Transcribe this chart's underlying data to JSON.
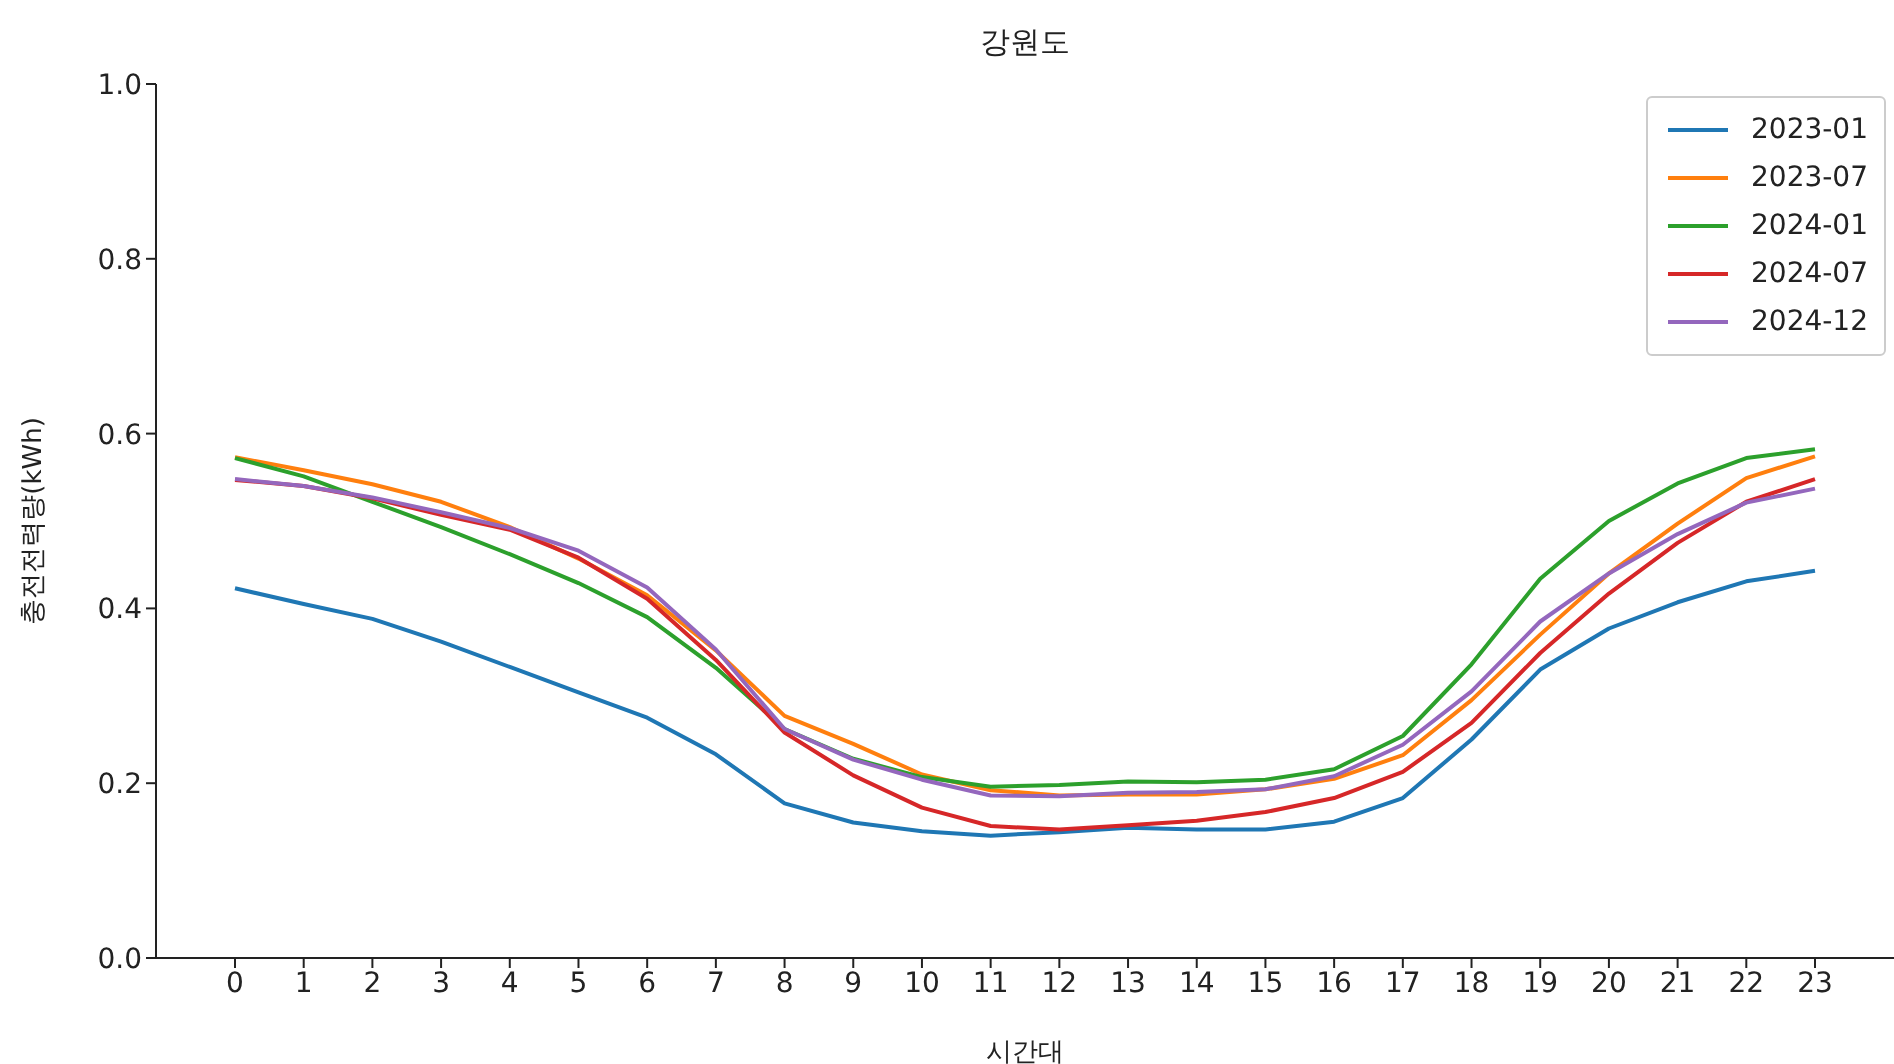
{
  "chart_data": {
    "type": "line",
    "title": "강원도",
    "xlabel": "시간대",
    "ylabel": "충전전력량(kWh)",
    "x": [
      0,
      1,
      2,
      3,
      4,
      5,
      6,
      7,
      8,
      9,
      10,
      11,
      12,
      13,
      14,
      15,
      16,
      17,
      18,
      19,
      20,
      21,
      22,
      23
    ],
    "xlim": [
      -1.15,
      24.15
    ],
    "xticks": [
      0,
      1,
      2,
      3,
      4,
      5,
      6,
      7,
      8,
      9,
      10,
      11,
      12,
      13,
      14,
      15,
      16,
      17,
      18,
      19,
      20,
      21,
      22,
      23
    ],
    "ylim": [
      0,
      1
    ],
    "yticks": [
      {
        "value": 0,
        "label": "0.0"
      },
      {
        "value": 0.2,
        "label": "0.2"
      },
      {
        "value": 0.4,
        "label": "0.4"
      },
      {
        "value": 0.6,
        "label": "0.6"
      },
      {
        "value": 0.8,
        "label": "0.8"
      },
      {
        "value": 1,
        "label": "1.0"
      }
    ],
    "grid": false,
    "legend": "top right",
    "marker": "none",
    "line_style": "solid",
    "series": [
      {
        "name": "2023-01",
        "color": "#1f77b4",
        "values": [
          0.423,
          0.405,
          0.388,
          0.362,
          0.333,
          0.304,
          0.275,
          0.233,
          0.177,
          0.155,
          0.145,
          0.14,
          0.144,
          0.149,
          0.147,
          0.147,
          0.156,
          0.183,
          0.25,
          0.33,
          0.377,
          0.407,
          0.431,
          0.443
        ]
      },
      {
        "name": "2023-07",
        "color": "#ff7f0e",
        "values": [
          0.573,
          0.558,
          0.542,
          0.522,
          0.493,
          0.457,
          0.415,
          0.352,
          0.277,
          0.245,
          0.21,
          0.192,
          0.186,
          0.187,
          0.187,
          0.193,
          0.205,
          0.232,
          0.295,
          0.37,
          0.44,
          0.497,
          0.549,
          0.574
        ]
      },
      {
        "name": "2024-01",
        "color": "#2ca02c",
        "values": [
          0.572,
          0.551,
          0.522,
          0.493,
          0.462,
          0.429,
          0.39,
          0.332,
          0.262,
          0.228,
          0.207,
          0.196,
          0.198,
          0.202,
          0.201,
          0.204,
          0.216,
          0.254,
          0.336,
          0.434,
          0.5,
          0.543,
          0.572,
          0.582
        ]
      },
      {
        "name": "2024-07",
        "color": "#d62728",
        "values": [
          0.547,
          0.54,
          0.526,
          0.507,
          0.49,
          0.458,
          0.411,
          0.341,
          0.258,
          0.209,
          0.172,
          0.151,
          0.147,
          0.152,
          0.157,
          0.167,
          0.183,
          0.213,
          0.269,
          0.349,
          0.417,
          0.475,
          0.522,
          0.548
        ]
      },
      {
        "name": "2024-12",
        "color": "#9467bd",
        "values": [
          0.548,
          0.54,
          0.527,
          0.51,
          0.492,
          0.466,
          0.424,
          0.353,
          0.262,
          0.227,
          0.204,
          0.186,
          0.185,
          0.189,
          0.19,
          0.193,
          0.208,
          0.244,
          0.305,
          0.385,
          0.44,
          0.485,
          0.521,
          0.537
        ]
      }
    ]
  }
}
